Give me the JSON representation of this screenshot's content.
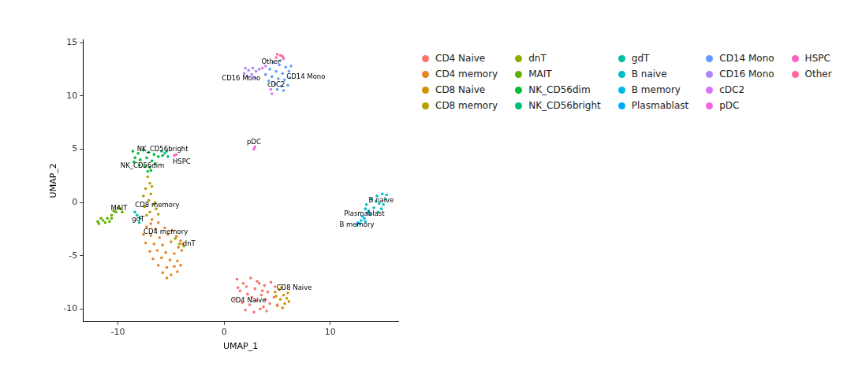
{
  "chart_data": {
    "type": "scatter",
    "x_label": "UMAP_1",
    "y_label": "UMAP_2",
    "xlim": [
      -13.3,
      16.4
    ],
    "ylim": [
      -11.2,
      15.3
    ],
    "xticks": [
      -10,
      0,
      10
    ],
    "yticks": [
      -10,
      -5,
      0,
      5,
      10,
      15
    ],
    "grid": false,
    "legend": "right",
    "marker": "circle",
    "series": [
      {
        "name": "CD4 Naive",
        "color": "#F8766D",
        "values": [
          [
            1.2,
            -7.2
          ],
          [
            1.8,
            -7.6
          ],
          [
            2.5,
            -7.1
          ],
          [
            3.1,
            -7.4
          ],
          [
            3.8,
            -7.8
          ],
          [
            4.4,
            -7.5
          ],
          [
            1.5,
            -8.3
          ],
          [
            2.2,
            -8.6
          ],
          [
            2.9,
            -8.1
          ],
          [
            3.5,
            -8.7
          ],
          [
            4.1,
            -8.4
          ],
          [
            4.7,
            -8.9
          ],
          [
            1.0,
            -9.1
          ],
          [
            1.7,
            -9.4
          ],
          [
            2.4,
            -9.6
          ],
          [
            3.0,
            -9.2
          ],
          [
            3.7,
            -9.8
          ],
          [
            4.3,
            -9.5
          ],
          [
            2.0,
            -10.1
          ],
          [
            2.8,
            -10.3
          ],
          [
            3.4,
            -10.0
          ],
          [
            4.0,
            -10.2
          ],
          [
            1.3,
            -8.0
          ],
          [
            3.3,
            -7.6
          ],
          [
            2.6,
            -8.9
          ],
          [
            3.9,
            -9.1
          ],
          [
            4.8,
            -7.9
          ],
          [
            5.0,
            -9.6
          ],
          [
            2.1,
            -7.9
          ],
          [
            3.6,
            -8.3
          ]
        ]
      },
      {
        "name": "CD4 memory",
        "color": "#E88526",
        "values": [
          [
            -6.8,
            -1.6
          ],
          [
            -6.2,
            -1.9
          ],
          [
            -7.3,
            -2.3
          ],
          [
            -6.5,
            -2.5
          ],
          [
            -5.6,
            -2.4
          ],
          [
            -4.9,
            -2.6
          ],
          [
            -7.6,
            -3.0
          ],
          [
            -6.9,
            -3.1
          ],
          [
            -6.1,
            -3.3
          ],
          [
            -5.3,
            -3.0
          ],
          [
            -4.5,
            -3.2
          ],
          [
            -4.1,
            -3.6
          ],
          [
            -7.4,
            -3.8
          ],
          [
            -6.6,
            -3.9
          ],
          [
            -5.8,
            -4.0
          ],
          [
            -5.0,
            -3.7
          ],
          [
            -4.3,
            -4.2
          ],
          [
            -7.0,
            -4.6
          ],
          [
            -6.3,
            -4.5
          ],
          [
            -5.5,
            -4.7
          ],
          [
            -4.7,
            -4.8
          ],
          [
            -4.0,
            -4.5
          ],
          [
            -6.7,
            -5.3
          ],
          [
            -5.9,
            -5.2
          ],
          [
            -5.1,
            -5.4
          ],
          [
            -4.4,
            -5.5
          ],
          [
            -6.2,
            -5.9
          ],
          [
            -5.4,
            -6.1
          ],
          [
            -4.7,
            -6.0
          ],
          [
            -4.1,
            -5.9
          ],
          [
            -5.8,
            -6.6
          ],
          [
            -5.0,
            -6.8
          ],
          [
            -4.4,
            -6.5
          ],
          [
            -5.4,
            -7.1
          ],
          [
            -6.9,
            -2.0
          ],
          [
            -3.9,
            -3.9
          ]
        ]
      },
      {
        "name": "CD8 Naive",
        "color": "#D39200",
        "values": [
          [
            4.8,
            -8.4
          ],
          [
            5.2,
            -8.2
          ],
          [
            5.6,
            -8.7
          ],
          [
            5.9,
            -9.0
          ],
          [
            5.3,
            -9.1
          ],
          [
            5.7,
            -9.5
          ],
          [
            6.0,
            -8.5
          ],
          [
            5.0,
            -9.7
          ],
          [
            5.5,
            -9.9
          ],
          [
            4.9,
            -8.8
          ],
          [
            6.1,
            -9.3
          ],
          [
            5.4,
            -8.0
          ]
        ]
      },
      {
        "name": "CD8 memory",
        "color": "#B79F00",
        "values": [
          [
            -7.2,
            2.4
          ],
          [
            -7.0,
            1.8
          ],
          [
            -7.4,
            1.3
          ],
          [
            -6.9,
            0.8
          ],
          [
            -7.1,
            0.2
          ],
          [
            -6.6,
            -0.2
          ],
          [
            -7.5,
            -0.4
          ],
          [
            -6.4,
            -0.6
          ],
          [
            -7.0,
            -0.9
          ],
          [
            -6.2,
            -1.1
          ],
          [
            -7.6,
            0.6
          ],
          [
            -6.8,
            1.5
          ],
          [
            -6.5,
            0.0
          ],
          [
            -7.3,
            -1.2
          ]
        ]
      },
      {
        "name": "dnT",
        "color": "#93AA00",
        "values": [
          [
            -4.6,
            -3.4
          ],
          [
            -4.2,
            -3.9
          ],
          [
            -3.8,
            -4.1
          ]
        ]
      },
      {
        "name": "MAIT",
        "color": "#5EB300",
        "values": [
          [
            -11.8,
            -2.0
          ],
          [
            -11.4,
            -1.7
          ],
          [
            -11.0,
            -1.5
          ],
          [
            -10.6,
            -1.2
          ],
          [
            -10.2,
            -0.9
          ],
          [
            -9.8,
            -0.6
          ],
          [
            -11.6,
            -1.5
          ],
          [
            -10.8,
            -1.8
          ],
          [
            -10.4,
            -0.8
          ],
          [
            -9.6,
            -0.9
          ],
          [
            -11.2,
            -1.9
          ],
          [
            -10.0,
            -0.5
          ],
          [
            -11.9,
            -1.8
          ],
          [
            -10.6,
            -1.5
          ]
        ]
      },
      {
        "name": "NK_CD56dim",
        "color": "#00BA38",
        "values": [
          [
            -8.6,
            4.8
          ],
          [
            -8.1,
            4.6
          ],
          [
            -7.6,
            4.9
          ],
          [
            -7.1,
            4.7
          ],
          [
            -6.6,
            4.5
          ],
          [
            -8.4,
            4.2
          ],
          [
            -7.9,
            4.0
          ],
          [
            -7.3,
            4.2
          ],
          [
            -6.8,
            3.9
          ],
          [
            -6.2,
            4.3
          ],
          [
            -8.0,
            3.5
          ],
          [
            -7.5,
            3.4
          ],
          [
            -7.0,
            3.3
          ],
          [
            -6.5,
            3.6
          ],
          [
            -7.2,
            2.9
          ],
          [
            -6.9,
            3.0
          ],
          [
            -5.8,
            4.4
          ],
          [
            -8.5,
            3.8
          ]
        ]
      },
      {
        "name": "NK_CD56bright",
        "color": "#00BF74",
        "values": [
          [
            -5.6,
            4.6
          ],
          [
            -5.3,
            4.3
          ],
          [
            -5.9,
            4.8
          ],
          [
            -5.4,
            4.8
          ]
        ]
      },
      {
        "name": "gdT",
        "color": "#00C19F",
        "values": [
          [
            -8.2,
            -1.2
          ],
          [
            -7.9,
            -1.5
          ],
          [
            -8.4,
            -0.9
          ],
          [
            -8.0,
            -1.9
          ]
        ]
      },
      {
        "name": "B naive",
        "color": "#00BFC4",
        "values": [
          [
            13.4,
            -0.2
          ],
          [
            13.9,
            0.3
          ],
          [
            14.4,
            0.6
          ],
          [
            14.9,
            0.8
          ],
          [
            15.2,
            0.3
          ],
          [
            14.6,
            -0.1
          ],
          [
            14.1,
            -0.5
          ],
          [
            13.6,
            -0.8
          ],
          [
            14.8,
            -0.6
          ],
          [
            15.0,
            -0.2
          ],
          [
            14.3,
            0.1
          ],
          [
            13.8,
            -1.1
          ],
          [
            15.3,
            0.7
          ],
          [
            14.5,
            -0.9
          ],
          [
            13.3,
            -0.6
          ]
        ]
      },
      {
        "name": "B memory",
        "color": "#00B9E3",
        "values": [
          [
            12.6,
            -1.9
          ],
          [
            12.9,
            -1.7
          ],
          [
            13.2,
            -1.5
          ],
          [
            12.8,
            -2.0
          ],
          [
            13.3,
            -1.8
          ],
          [
            12.5,
            -2.1
          ]
        ]
      },
      {
        "name": "Plasmablast",
        "color": "#00ADFA",
        "values": [
          [
            13.5,
            -1.0
          ],
          [
            13.0,
            -1.3
          ]
        ]
      },
      {
        "name": "CD14 Mono",
        "color": "#619CFF",
        "values": [
          [
            4.6,
            13.1
          ],
          [
            5.2,
            12.9
          ],
          [
            5.8,
            12.7
          ],
          [
            4.3,
            12.5
          ],
          [
            4.9,
            12.3
          ],
          [
            5.5,
            12.1
          ],
          [
            6.1,
            12.3
          ],
          [
            4.5,
            11.8
          ],
          [
            5.1,
            11.6
          ],
          [
            5.7,
            11.5
          ],
          [
            6.2,
            11.7
          ],
          [
            4.8,
            11.1
          ],
          [
            5.4,
            10.9
          ],
          [
            6.0,
            11.0
          ],
          [
            4.2,
            11.4
          ],
          [
            5.0,
            10.6
          ],
          [
            5.6,
            10.5
          ],
          [
            3.9,
            12.0
          ],
          [
            6.3,
            12.8
          ],
          [
            5.3,
            13.3
          ]
        ]
      },
      {
        "name": "CD16 Mono",
        "color": "#AE87FF",
        "values": [
          [
            1.9,
            12.1
          ],
          [
            2.3,
            12.4
          ],
          [
            2.7,
            12.6
          ],
          [
            2.2,
            11.8
          ],
          [
            2.6,
            12.0
          ],
          [
            3.0,
            12.3
          ],
          [
            2.0,
            12.6
          ],
          [
            2.9,
            11.7
          ],
          [
            3.3,
            12.5
          ]
        ]
      },
      {
        "name": "cDC2",
        "color": "#DB72FB",
        "values": [
          [
            4.4,
            10.6
          ],
          [
            4.5,
            10.2
          ],
          [
            3.6,
            12.6
          ],
          [
            3.9,
            12.8
          ]
        ]
      },
      {
        "name": "pDC",
        "color": "#F564E3",
        "values": [
          [
            2.8,
            5.0
          ],
          [
            2.9,
            5.2
          ]
        ]
      },
      {
        "name": "HSPC",
        "color": "#FF61C3",
        "values": [
          [
            -4.7,
            4.4
          ],
          [
            -4.5,
            4.5
          ]
        ]
      },
      {
        "name": "Other",
        "color": "#FF699C",
        "values": [
          [
            4.9,
            13.6
          ],
          [
            5.3,
            13.8
          ],
          [
            5.6,
            13.5
          ],
          [
            5.0,
            13.9
          ],
          [
            5.5,
            13.7
          ]
        ]
      }
    ],
    "annotations": [
      {
        "text": "Other",
        "x": 4.4,
        "y": 13.2
      },
      {
        "text": "CD14 Mono",
        "x": 7.7,
        "y": 11.8
      },
      {
        "text": "CD16 Mono",
        "x": 1.6,
        "y": 11.6
      },
      {
        "text": "cDC2",
        "x": 4.9,
        "y": 11.0
      },
      {
        "text": "pDC",
        "x": 2.8,
        "y": 5.6
      },
      {
        "text": "NK_CD56bright",
        "x": -5.8,
        "y": 5.0
      },
      {
        "text": "NK_CD56dim",
        "x": -7.7,
        "y": 3.4
      },
      {
        "text": "HSPC",
        "x": -4.0,
        "y": 3.8
      },
      {
        "text": "CD8 memory",
        "x": -6.3,
        "y": -0.3
      },
      {
        "text": "MAIT",
        "x": -9.9,
        "y": -0.6
      },
      {
        "text": "gdT",
        "x": -8.1,
        "y": -1.6
      },
      {
        "text": "CD4 memory",
        "x": -5.5,
        "y": -2.8
      },
      {
        "text": "dnT",
        "x": -3.3,
        "y": -3.9
      },
      {
        "text": "B naive",
        "x": 14.8,
        "y": 0.2
      },
      {
        "text": "Plasmablast",
        "x": 13.2,
        "y": -1.1
      },
      {
        "text": "B memory",
        "x": 12.5,
        "y": -2.1
      },
      {
        "text": "CD8 Naive",
        "x": 6.6,
        "y": -8.0
      },
      {
        "text": "CD4 Naive",
        "x": 2.3,
        "y": -9.2
      }
    ]
  }
}
